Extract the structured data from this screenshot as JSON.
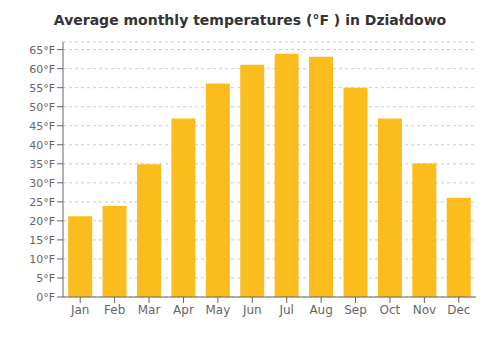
{
  "chart_data": {
    "type": "bar",
    "title": "Average monthly temperatures (°F ) in Działdowo",
    "categories": [
      "Jan",
      "Feb",
      "Mar",
      "Apr",
      "May",
      "Jun",
      "Jul",
      "Aug",
      "Sep",
      "Oct",
      "Nov",
      "Dec"
    ],
    "values": [
      21.2,
      23.9,
      34.9,
      46.9,
      56.1,
      61.0,
      63.9,
      63.1,
      55.0,
      46.9,
      35.1,
      26.1
    ],
    "color": "#FBBC1E",
    "ylim": [
      0,
      67
    ],
    "yticks": [
      {
        "value": 0,
        "label": "0°F"
      },
      {
        "value": 5,
        "label": "5°F"
      },
      {
        "value": 10,
        "label": "10°F"
      },
      {
        "value": 15,
        "label": "15°F"
      },
      {
        "value": 20,
        "label": "20°F"
      },
      {
        "value": 25,
        "label": "25°F"
      },
      {
        "value": 30,
        "label": "30°F"
      },
      {
        "value": 35,
        "label": "35°F"
      },
      {
        "value": 40,
        "label": "40°F"
      },
      {
        "value": 45,
        "label": "45°F"
      },
      {
        "value": 50,
        "label": "50°F"
      },
      {
        "value": 55,
        "label": "55°F"
      },
      {
        "value": 60,
        "label": "60°F"
      },
      {
        "value": 65,
        "label": "65°F"
      }
    ],
    "grid": true
  }
}
